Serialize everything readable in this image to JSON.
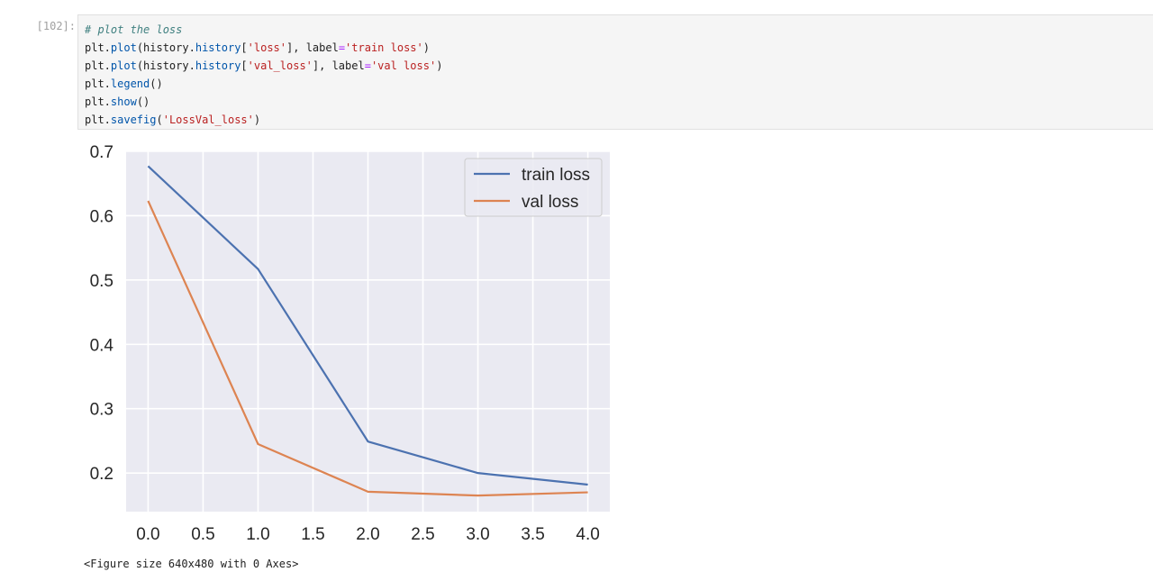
{
  "cell": {
    "prompt": "[102]:",
    "code": {
      "line1": "# plot the loss",
      "line2": {
        "a": "plt.",
        "b": "plot",
        "c": "(history.",
        "d": "history",
        "e": "[",
        "f": "'loss'",
        "g": "], label",
        "h": "=",
        "i": "'train loss'",
        "j": ")"
      },
      "line3": {
        "a": "plt.",
        "b": "plot",
        "c": "(history.",
        "d": "history",
        "e": "[",
        "f": "'val_loss'",
        "g": "], label",
        "h": "=",
        "i": "'val loss'",
        "j": ")"
      },
      "line4": {
        "a": "plt.",
        "b": "legend",
        "c": "()"
      },
      "line5": {
        "a": "plt.",
        "b": "show",
        "c": "()"
      },
      "line6": {
        "a": "plt.",
        "b": "savefig",
        "c": "(",
        "d": "'LossVal_loss'",
        "e": ")"
      }
    }
  },
  "output": {
    "figure_caption": "<Figure size 640x480 with 0 Axes>"
  },
  "chart_data": {
    "type": "line",
    "title": "",
    "xlabel": "",
    "ylabel": "",
    "x": [
      0,
      1,
      2,
      3,
      4
    ],
    "series": [
      {
        "name": "train loss",
        "values": [
          0.677,
          0.517,
          0.249,
          0.2,
          0.182
        ],
        "color": "#4c72b0"
      },
      {
        "name": "val loss",
        "values": [
          0.623,
          0.245,
          0.171,
          0.165,
          0.17
        ],
        "color": "#dd8452"
      }
    ],
    "xlim": [
      -0.2,
      4.2
    ],
    "ylim": [
      0.14,
      0.7
    ],
    "xticks": [
      "0.0",
      "0.5",
      "1.0",
      "1.5",
      "2.0",
      "2.5",
      "3.0",
      "3.5",
      "4.0"
    ],
    "yticks": [
      "0.2",
      "0.3",
      "0.4",
      "0.5",
      "0.6",
      "0.7"
    ],
    "grid": true,
    "legend": "top-right",
    "background": "#eaeaf2"
  }
}
